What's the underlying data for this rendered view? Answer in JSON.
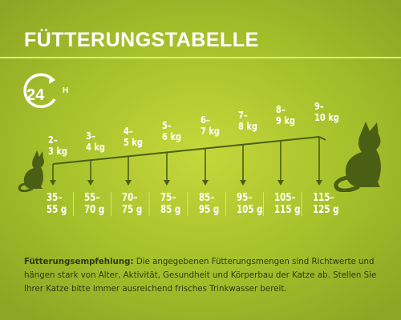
{
  "title": "FÜTTERUNGSTABELLE",
  "badge": {
    "number": "24",
    "unit": "H"
  },
  "columns": [
    {
      "weight": "2–\n3 kg",
      "amount": "35–\n55 g"
    },
    {
      "weight": "3–\n4 kg",
      "amount": "55–\n70 g"
    },
    {
      "weight": "4–\n5 kg",
      "amount": "70–\n75 g"
    },
    {
      "weight": "5–\n6 kg",
      "amount": "75–\n85 g"
    },
    {
      "weight": "6–\n7 kg",
      "amount": "85–\n95 g"
    },
    {
      "weight": "7–\n8 kg",
      "amount": "95–\n105 g"
    },
    {
      "weight": "8–\n9 kg",
      "amount": "105–\n115 g"
    },
    {
      "weight": "9–\n10 kg",
      "amount": "115–\n125 g"
    }
  ],
  "footnote": {
    "label": "Fütterungsempfehlung:",
    "text": " Die angegebenen Fütterungsmengen sind Richtwerte und hängen stark von Alter, Aktivität, Gesundheit und Körperbau der Katze ab. Stellen Sie Ihrer Katze bitte immer ausreichend frisches Trinkwasser bereit."
  },
  "colors": {
    "accent": "#e0ec70",
    "ink": "#4a5f14",
    "text": "#2f3a12"
  }
}
